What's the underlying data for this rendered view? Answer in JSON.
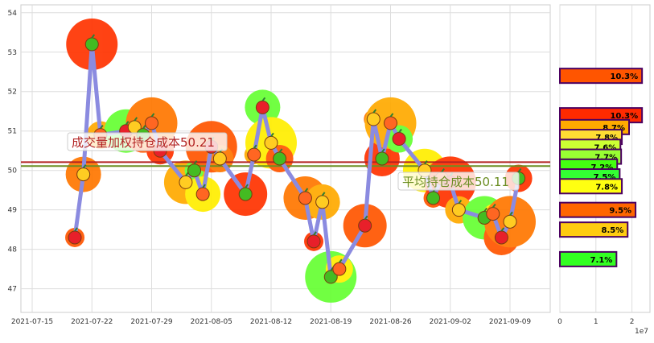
{
  "chart_data": [
    {
      "type": "line",
      "x_ticks": [
        "2021-07-15",
        "2021-07-22",
        "2021-07-29",
        "2021-08-05",
        "2021-08-12",
        "2021-08-19",
        "2021-08-26",
        "2021-09-02",
        "2021-09-09"
      ],
      "y_ticks": [
        "47",
        "48",
        "49",
        "50",
        "51",
        "52",
        "53",
        "54"
      ],
      "ylim": [
        46.4,
        54.2
      ],
      "grid": true,
      "series": [
        {
          "color": "#8b8be0",
          "x": [
            "2021-07-20",
            "2021-07-21",
            "2021-07-22",
            "2021-07-23",
            "2021-07-26",
            "2021-07-27",
            "2021-07-28",
            "2021-07-29",
            "2021-07-30",
            "2021-08-02",
            "2021-08-03",
            "2021-08-04",
            "2021-08-05",
            "2021-08-06",
            "2021-08-09",
            "2021-08-10",
            "2021-08-11",
            "2021-08-12",
            "2021-08-13",
            "2021-08-16",
            "2021-08-17",
            "2021-08-18",
            "2021-08-19",
            "2021-08-20",
            "2021-08-23",
            "2021-08-24",
            "2021-08-25",
            "2021-08-26",
            "2021-08-27",
            "2021-08-30",
            "2021-08-31",
            "2021-09-01",
            "2021-09-02",
            "2021-09-03",
            "2021-09-06",
            "2021-09-07",
            "2021-09-08",
            "2021-09-09",
            "2021-09-10"
          ],
          "y": [
            48.3,
            49.9,
            53.2,
            50.9,
            51.0,
            51.1,
            50.9,
            51.2,
            50.5,
            49.7,
            50.0,
            49.4,
            50.6,
            50.3,
            49.4,
            50.4,
            51.6,
            50.7,
            50.3,
            49.3,
            48.2,
            49.2,
            47.3,
            47.5,
            48.6,
            51.3,
            50.3,
            51.2,
            50.8,
            50.0,
            49.3,
            49.8,
            49.7,
            49.0,
            48.8,
            48.9,
            48.3,
            48.7,
            49.8
          ]
        }
      ],
      "reference_lines": [
        {
          "value": 50.21,
          "color": "#b22222",
          "label": "成交量加权持仓成本50.21",
          "label_color": "#b22222"
        },
        {
          "value": 50.11,
          "color": "#6b8e23",
          "label": "平均持仓成本50.11",
          "label_color": "#6b8e23"
        }
      ]
    },
    {
      "type": "bar",
      "orientation": "horizontal",
      "x_ticks": [
        "0",
        "1",
        "2"
      ],
      "x_exponent": "1e7",
      "xlim": [
        0,
        25000000
      ],
      "bars": [
        {
          "price": 52.4,
          "value": 22800000,
          "label": "10.3%",
          "color": "#ff5500"
        },
        {
          "price": 51.4,
          "value": 22800000,
          "label": "10.3%",
          "color": "#ff2a00"
        },
        {
          "price": 51.1,
          "value": 19200000,
          "label": "8.7%",
          "color": "#ffaa00"
        },
        {
          "price": 50.85,
          "value": 17200000,
          "label": "7.8%",
          "color": "#ffdd33"
        },
        {
          "price": 50.6,
          "value": 16800000,
          "label": "7.6%",
          "color": "#ccff33"
        },
        {
          "price": 50.35,
          "value": 17000000,
          "label": "7.7%",
          "color": "#99ff33"
        },
        {
          "price": 50.1,
          "value": 15900000,
          "label": "7.2%",
          "color": "#44ff11"
        },
        {
          "price": 49.85,
          "value": 16600000,
          "label": "7.5%",
          "color": "#33ff33"
        },
        {
          "price": 49.6,
          "value": 17200000,
          "label": "7.8%",
          "color": "#ffff11"
        },
        {
          "price": 49.0,
          "value": 21000000,
          "label": "9.5%",
          "color": "#ff6600"
        },
        {
          "price": 48.5,
          "value": 18800000,
          "label": "8.5%",
          "color": "#ffcc11"
        },
        {
          "price": 47.75,
          "value": 15700000,
          "label": "7.1%",
          "color": "#33ff22"
        }
      ]
    }
  ]
}
